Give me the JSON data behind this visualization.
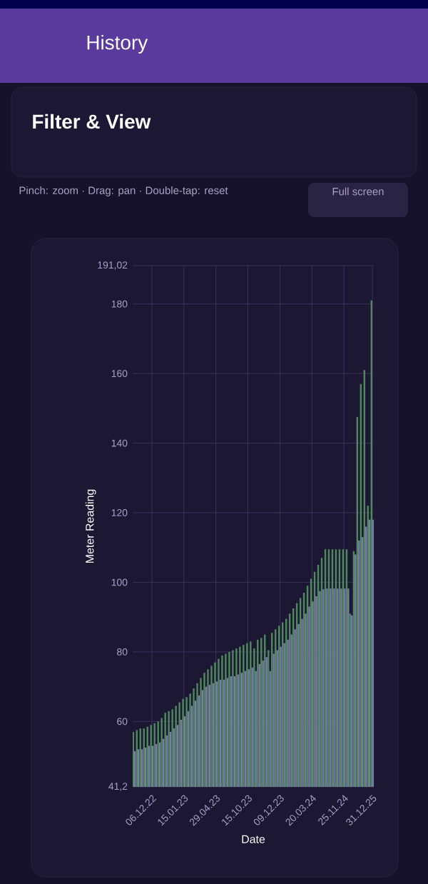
{
  "chart_data": {
    "type": "bar",
    "title": "History",
    "xlabel": "Date",
    "ylabel": "Meter Reading",
    "categories": [
      null,
      null,
      null,
      null,
      null,
      "06.12.22",
      null,
      null,
      null,
      null,
      null,
      null,
      null,
      null,
      "15.01.23",
      null,
      null,
      null,
      null,
      null,
      null,
      null,
      null,
      "29.04.23",
      null,
      null,
      null,
      null,
      null,
      null,
      null,
      null,
      "15.10.23",
      null,
      null,
      null,
      null,
      null,
      null,
      null,
      null,
      "09.12.23",
      null,
      null,
      null,
      null,
      null,
      null,
      null,
      null,
      "20.03.24",
      null,
      null,
      null,
      null,
      null,
      null,
      null,
      null,
      "25.11.24",
      null,
      null,
      null,
      null,
      null,
      null,
      null,
      "31.12.25"
    ],
    "series": [
      {
        "color": "#4f8a5c",
        "values": [
          57,
          57.5,
          58,
          58,
          58.5,
          59,
          59.5,
          60,
          61,
          62.5,
          63,
          63.5,
          64.5,
          65.5,
          66.5,
          67,
          68,
          69.5,
          71,
          72.5,
          74,
          75,
          76,
          77,
          78,
          79,
          79.5,
          80,
          80.5,
          81,
          81.5,
          82,
          82.5,
          83,
          81,
          83.5,
          84,
          85,
          80.5,
          85.5,
          86.5,
          87.5,
          88.5,
          89.5,
          91,
          92.5,
          94,
          95.5,
          97,
          99,
          101,
          103,
          105,
          107,
          109.5,
          109.5,
          109.5,
          109.5,
          109.5,
          109.5,
          109.5,
          91,
          109,
          147.5,
          157,
          161,
          122,
          181
        ]
      },
      {
        "color": "#7b7eab",
        "values": [
          51.5,
          52,
          52,
          52.5,
          53,
          53,
          53.5,
          54,
          55,
          56,
          57,
          58,
          59,
          60.5,
          61.5,
          63,
          64.5,
          66,
          67.5,
          69,
          70,
          70.5,
          71,
          71.5,
          72,
          72,
          72.5,
          73,
          73,
          73.5,
          74,
          74.5,
          75,
          75.5,
          74.5,
          76.5,
          77.5,
          78.5,
          74.5,
          79.5,
          80.5,
          81.5,
          82.5,
          83.5,
          85,
          86.5,
          88,
          89.5,
          91,
          93,
          94.5,
          96,
          97.5,
          98,
          98.2,
          98.2,
          98.2,
          98.2,
          98.2,
          98.2,
          98.2,
          90.5,
          108,
          112,
          113,
          116,
          118,
          118
        ]
      }
    ],
    "ylim": [
      41.2,
      191.02
    ],
    "yticks": [
      {
        "value": 41.2,
        "label": "41,2"
      },
      60,
      80,
      100,
      120,
      140,
      160,
      180,
      {
        "value": 191.02,
        "label": "191,02"
      }
    ],
    "grid": true,
    "annotations": [
      "Filter & View",
      "Pinch: zoom · Drag: pan · Double-tap: reset",
      "Full screen"
    ]
  }
}
